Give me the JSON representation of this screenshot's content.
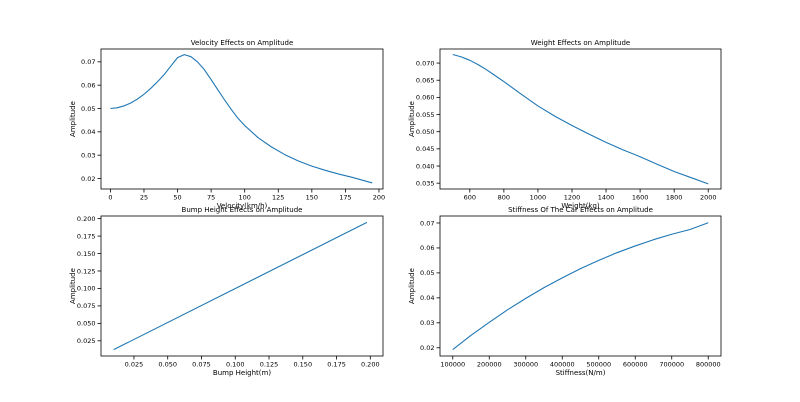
{
  "style": {
    "line_color": "#1f77b4",
    "background": "#ffffff"
  },
  "chart_data": [
    {
      "type": "line",
      "title": "Velocity Effects on Amplitude",
      "xlabel": "Velocity(km/h)",
      "ylabel": "Amplitude",
      "xlim": [
        -7,
        203
      ],
      "ylim": [
        0.0155,
        0.0755
      ],
      "xticks": [
        0,
        25,
        50,
        75,
        100,
        125,
        150,
        175,
        200
      ],
      "yticks": [
        0.02,
        0.03,
        0.04,
        0.05,
        0.06,
        0.07
      ],
      "ytick_decimals": 2,
      "grid": false,
      "series": [
        {
          "x": [
            0,
            5,
            10,
            15,
            20,
            25,
            30,
            35,
            40,
            45,
            50,
            55,
            60,
            65,
            70,
            75,
            80,
            85,
            90,
            95,
            100,
            110,
            120,
            130,
            140,
            150,
            160,
            170,
            180,
            190,
            195
          ],
          "y": [
            0.05,
            0.0503,
            0.0511,
            0.0523,
            0.054,
            0.0561,
            0.0586,
            0.0614,
            0.0645,
            0.0682,
            0.0718,
            0.0731,
            0.0722,
            0.0699,
            0.0666,
            0.0624,
            0.058,
            0.0537,
            0.0496,
            0.0458,
            0.0427,
            0.0375,
            0.0335,
            0.0302,
            0.0275,
            0.0253,
            0.0235,
            0.0219,
            0.0205,
            0.0189,
            0.0181
          ]
        }
      ]
    },
    {
      "type": "line",
      "title": "Weight Effects on Amplitude",
      "xlabel": "Weight(kg)",
      "ylabel": "Amplitude",
      "xlim": [
        425,
        2075
      ],
      "ylim": [
        0.0333,
        0.0741
      ],
      "xticks": [
        600,
        800,
        1000,
        1200,
        1400,
        1600,
        1800,
        2000
      ],
      "yticks": [
        0.035,
        0.04,
        0.045,
        0.05,
        0.055,
        0.06,
        0.065,
        0.07
      ],
      "ytick_decimals": 3,
      "grid": false,
      "series": [
        {
          "x": [
            500,
            550,
            600,
            650,
            700,
            750,
            800,
            900,
            1000,
            1100,
            1200,
            1300,
            1400,
            1500,
            1600,
            1700,
            1800,
            1900,
            2000
          ],
          "y": [
            0.0725,
            0.0718,
            0.0708,
            0.0695,
            0.068,
            0.0663,
            0.0646,
            0.061,
            0.0575,
            0.0545,
            0.0518,
            0.0493,
            0.0469,
            0.0447,
            0.0427,
            0.0405,
            0.0384,
            0.0366,
            0.0348
          ]
        }
      ]
    },
    {
      "type": "line",
      "title": "Bump Height  Effects on Amplitude",
      "xlabel": "Bump Height(m)",
      "ylabel": "Amplitude",
      "xlim": [
        0.0006,
        0.2094
      ],
      "ylim": [
        0.00325,
        0.20375
      ],
      "xticks": [
        0.025,
        0.05,
        0.075,
        0.1,
        0.125,
        0.15,
        0.175,
        0.2
      ],
      "yticks": [
        0.025,
        0.05,
        0.075,
        0.1,
        0.125,
        0.15,
        0.175,
        0.2
      ],
      "ytick_decimals": 3,
      "grid": false,
      "series": [
        {
          "x": [
            0.01,
            0.1975
          ],
          "y": [
            0.0124,
            0.1946
          ]
        }
      ]
    },
    {
      "type": "line",
      "title": "Stiffness Of The Car Effects on Amplitude",
      "xlabel": "Stiffness(N/m)",
      "ylabel": "Amplitude",
      "xlim": [
        65000,
        835000
      ],
      "ylim": [
        0.0167,
        0.0728
      ],
      "xticks": [
        100000,
        200000,
        300000,
        400000,
        500000,
        600000,
        700000,
        800000
      ],
      "yticks": [
        0.02,
        0.03,
        0.04,
        0.05,
        0.06,
        0.07
      ],
      "ytick_decimals": 2,
      "grid": false,
      "series": [
        {
          "x": [
            100000,
            150000,
            200000,
            250000,
            300000,
            350000,
            400000,
            450000,
            500000,
            550000,
            600000,
            650000,
            700000,
            750000,
            800000
          ],
          "y": [
            0.0193,
            0.025,
            0.0302,
            0.0352,
            0.0398,
            0.0441,
            0.048,
            0.0517,
            0.055,
            0.0581,
            0.0608,
            0.0633,
            0.0655,
            0.0674,
            0.0701
          ]
        }
      ]
    }
  ]
}
